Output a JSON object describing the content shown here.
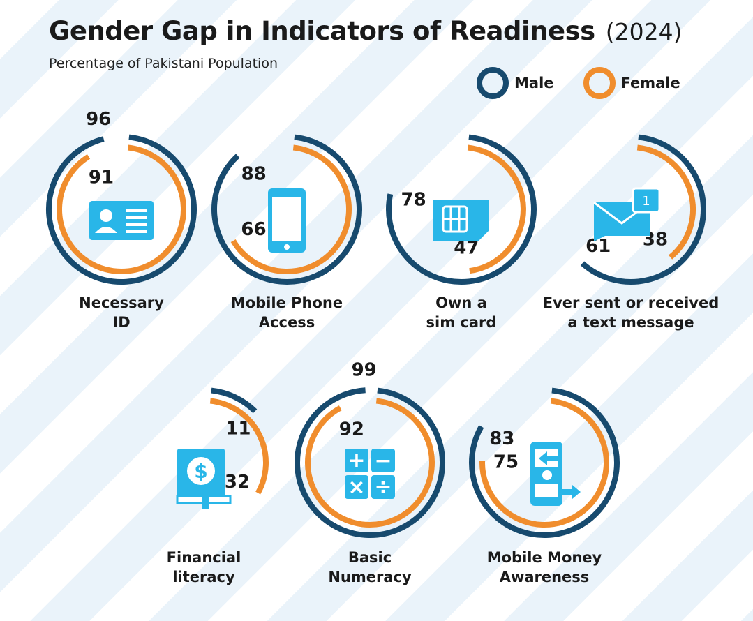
{
  "header": {
    "title": "Gender Gap in Indicators of Readiness",
    "year": "(2024)",
    "subtitle": "Percentage of Pakistani Population"
  },
  "colors": {
    "male": "#174a6e",
    "female": "#f08d2d",
    "icon": "#29b6e8"
  },
  "legend": [
    {
      "name": "Male",
      "color": "#174a6e"
    },
    {
      "name": "Female",
      "color": "#f08d2d"
    }
  ],
  "chart_data": {
    "type": "radial-bar",
    "title": "Gender Gap in Indicators of Readiness",
    "subtitle": "Percentage of Pakistani Population",
    "series_names": [
      "Male",
      "Female"
    ],
    "categories": [
      {
        "label": [
          "Necessary",
          "ID"
        ],
        "male": 96,
        "female": 91,
        "icon": "id-card-icon"
      },
      {
        "label": [
          "Mobile Phone",
          "Access"
        ],
        "male": 88,
        "female": 66,
        "icon": "mobile-phone-icon"
      },
      {
        "label": [
          "Own a",
          "sim card"
        ],
        "male": 78,
        "female": 47,
        "icon": "sim-card-icon"
      },
      {
        "label": [
          "Ever sent or received",
          "a text message"
        ],
        "male": 61,
        "female": 38,
        "icon": "envelope-icon"
      },
      {
        "label": [
          "Financial",
          "literacy"
        ],
        "male": 11,
        "female": 32,
        "icon": "finance-book-icon"
      },
      {
        "label": [
          "Basic",
          "Numeracy"
        ],
        "male": 99,
        "female": 92,
        "icon": "calculator-icon"
      },
      {
        "label": [
          "Mobile Money",
          "Awareness"
        ],
        "male": 83,
        "female": 75,
        "icon": "mobile-money-icon"
      }
    ],
    "ylim": [
      0,
      100
    ]
  }
}
